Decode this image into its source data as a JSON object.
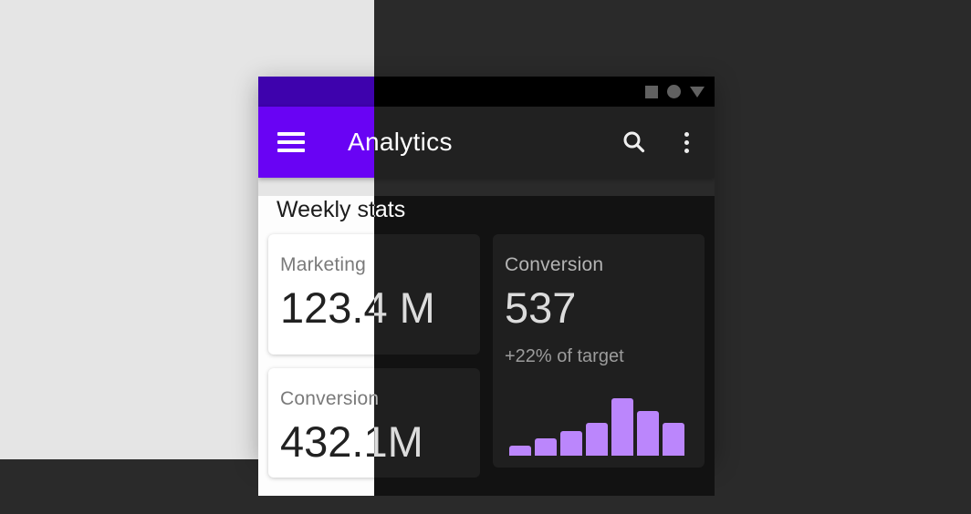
{
  "colors": {
    "primary": "#6903f4",
    "primary_dark": "#3e02ad",
    "bar_purple": "#bb86fc",
    "dark_app_bar": "#212121",
    "dark_surface": "#121212",
    "dark_card": "#1f1f1f",
    "backdrop_light": "#e5e5e5",
    "backdrop_dark": "#2a2a2a"
  },
  "status_bar": {
    "icons": [
      "square-icon",
      "circle-icon",
      "triangle-icon"
    ]
  },
  "app_bar": {
    "title": "Analytics",
    "menu_icon": "hamburger-menu-icon",
    "search_icon": "search-icon",
    "overflow_icon": "overflow-menu-icon"
  },
  "content": {
    "heading": "Weekly stats",
    "cards": [
      {
        "label": "Marketing",
        "value": "123.4 M"
      },
      {
        "label": "Conversion",
        "value": "432.1M"
      },
      {
        "label": "Conversion",
        "value": "537",
        "delta": "+22% of target"
      }
    ]
  },
  "chart_data": {
    "type": "bar",
    "title": "",
    "xlabel": "",
    "ylabel": "",
    "categories": [
      "",
      "",
      "",
      "",
      "",
      "",
      ""
    ],
    "values": [
      11,
      19,
      27,
      36,
      63,
      49,
      36
    ],
    "ylim": [
      0,
      64
    ],
    "grid": false,
    "legend": false,
    "bar_color": "#bb86fc"
  }
}
